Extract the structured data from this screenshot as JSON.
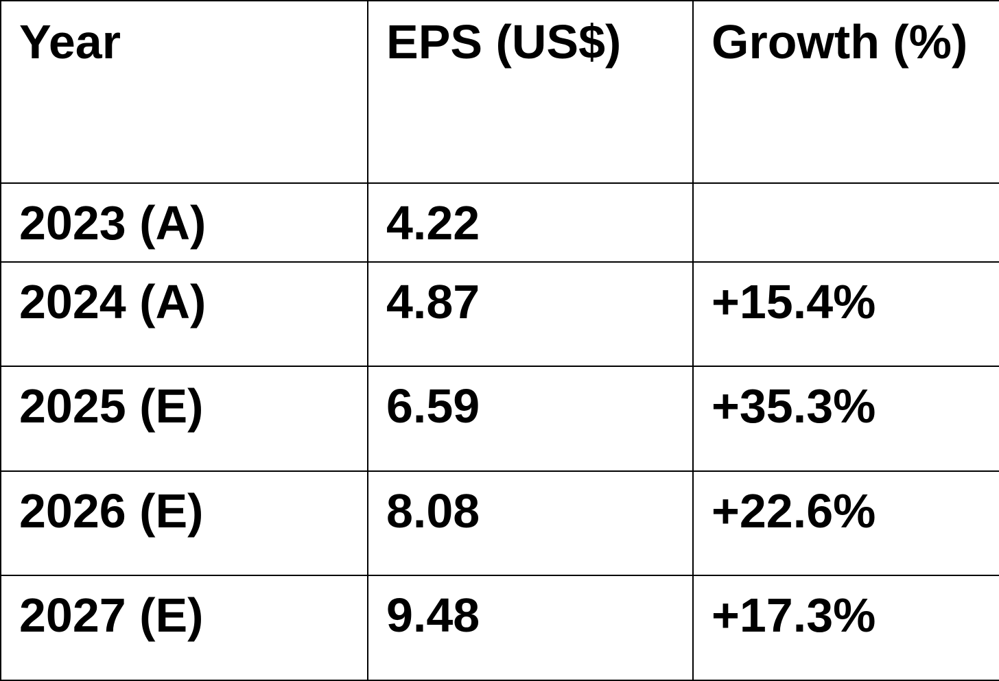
{
  "chart_data": {
    "type": "table",
    "columns": [
      "Year",
      "EPS (US$)",
      "Growth (%)"
    ],
    "rows": [
      {
        "year": "2023 (A)",
        "eps": "4.22",
        "growth": ""
      },
      {
        "year": "2024 (A)",
        "eps": "4.87",
        "growth": "+15.4%"
      },
      {
        "year": "2025 (E)",
        "eps": "6.59",
        "growth": "+35.3%"
      },
      {
        "year": "2026 (E)",
        "eps": "8.08",
        "growth": "+22.6%"
      },
      {
        "year": "2027 (E)",
        "eps": "9.48",
        "growth": "+17.3%"
      }
    ]
  }
}
